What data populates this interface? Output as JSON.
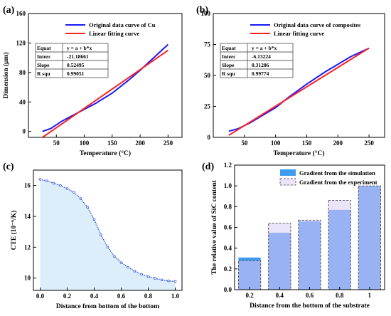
{
  "chart_data": [
    {
      "panel": "(a)",
      "type": "line",
      "xlabel": "Temperature (°C)",
      "ylabel": "Dimension (μm)",
      "xlim": [
        0,
        275
      ],
      "ylim": [
        -8,
        160
      ],
      "xticks": [
        "50",
        "100",
        "150",
        "200",
        "250"
      ],
      "xtick_values": [
        50,
        100,
        150,
        200,
        250
      ],
      "yticks": [
        "0",
        "40",
        "80",
        "120",
        "160"
      ],
      "ytick_values": [
        0,
        40,
        80,
        120,
        160
      ],
      "legend": {
        "placement": "top-right"
      },
      "series": [
        {
          "name": "Original data curve of Cu",
          "color": "#1a1aff",
          "x": [
            25,
            40,
            60,
            80,
            100,
            120,
            150,
            180,
            200,
            220,
            250
          ],
          "y": [
            0,
            4,
            14,
            22,
            30,
            38,
            52,
            70,
            83,
            97,
            118
          ]
        },
        {
          "name": "Linear fitting curve",
          "color": "#ff2020",
          "x": [
            25,
            250
          ],
          "y": [
            -8.06,
            110.06
          ]
        }
      ],
      "fit_table": {
        "rows": [
          [
            "Equat",
            "y = a + b*x"
          ],
          [
            "Interc",
            "-21.18661"
          ],
          [
            "Slope",
            "0.52495"
          ],
          [
            "R squ",
            "0.99051"
          ]
        ]
      }
    },
    {
      "panel": "(b)",
      "type": "line",
      "xlabel": "Temperature (°C)",
      "ylabel": "",
      "xlim": [
        0,
        275
      ],
      "ylim": [
        0,
        100
      ],
      "xticks": [
        "50",
        "100",
        "150",
        "200",
        "250"
      ],
      "xtick_values": [
        50,
        100,
        150,
        200,
        250
      ],
      "yticks": [
        "0",
        "25",
        "50",
        "75",
        "100"
      ],
      "ytick_values": [
        0,
        25,
        50,
        75,
        100
      ],
      "legend": {
        "placement": "top-right"
      },
      "series": [
        {
          "name": "Original data curve of composites",
          "color": "#1a1aff",
          "x": [
            25,
            40,
            60,
            80,
            100,
            120,
            150,
            180,
            200,
            220,
            250
          ],
          "y": [
            5,
            7,
            12,
            18,
            24,
            32,
            43,
            53,
            59,
            65,
            72
          ]
        },
        {
          "name": "Linear fitting curve",
          "color": "#ff2020",
          "x": [
            25,
            250
          ],
          "y": [
            1.69,
            72.09
          ]
        }
      ],
      "fit_table": {
        "rows": [
          [
            "Equat",
            "y = a + b*x"
          ],
          [
            "Interc",
            "-6.13224"
          ],
          [
            "Slope",
            "0.31286"
          ],
          [
            "R squ",
            "0.99774"
          ]
        ]
      }
    },
    {
      "panel": "(c)",
      "type": "area",
      "xlabel": "Distance from bottom of the bottom",
      "ylabel": "CTE (10⁻⁶/K)",
      "xlim": [
        -0.05,
        1.05
      ],
      "ylim": [
        9.2,
        17
      ],
      "xticks": [
        "0.0",
        "0.2",
        "0.4",
        "0.6",
        "0.8",
        "1.0"
      ],
      "xtick_values": [
        0,
        0.2,
        0.4,
        0.6,
        0.8,
        1.0
      ],
      "yticks": [
        "10",
        "12",
        "14",
        "16"
      ],
      "ytick_values": [
        10,
        12,
        14,
        16
      ],
      "series": [
        {
          "color": "#3b5bdb",
          "fill": "#dbeefa",
          "x": [
            0,
            0.05,
            0.1,
            0.15,
            0.2,
            0.25,
            0.3,
            0.35,
            0.4,
            0.45,
            0.5,
            0.55,
            0.6,
            0.65,
            0.7,
            0.75,
            0.8,
            0.85,
            0.9,
            0.95,
            1.0
          ],
          "y": [
            16.4,
            16.3,
            16.15,
            16.0,
            15.8,
            15.55,
            15.15,
            14.6,
            13.8,
            12.8,
            12.0,
            11.4,
            11.0,
            10.7,
            10.45,
            10.25,
            10.1,
            9.98,
            9.88,
            9.82,
            9.78
          ]
        }
      ]
    },
    {
      "panel": "(d)",
      "type": "bar",
      "xlabel": "Distance from the bottom of the substrate",
      "ylabel": "The relative value of SiC content",
      "ylim": [
        0,
        1.2
      ],
      "categories": [
        "0.2",
        "0.4",
        "0.6",
        "0.8",
        "1"
      ],
      "yticks": [
        "0.0",
        "0.2",
        "0.4",
        "0.6",
        "0.8",
        "1.0",
        "1.2"
      ],
      "ytick_values": [
        0,
        0.2,
        0.4,
        0.6,
        0.8,
        1.0,
        1.2
      ],
      "legend": {
        "placement": "top-left"
      },
      "series": [
        {
          "name": "Gradient from the simulation",
          "color": "#3d9bf0",
          "values": [
            0.31,
            0.55,
            0.66,
            0.77,
            1.0
          ]
        },
        {
          "name": "Gradient from the experiment",
          "color": "#ece4f8",
          "values": [
            0.28,
            0.64,
            0.67,
            0.86,
            1.0
          ]
        }
      ],
      "overlap_color": "#98b2f4"
    }
  ]
}
